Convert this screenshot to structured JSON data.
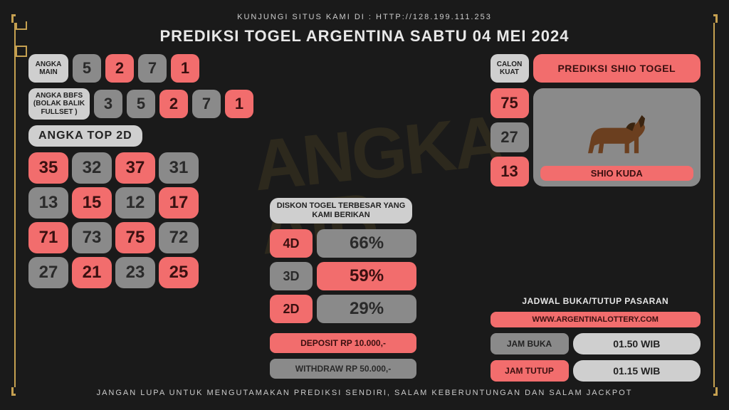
{
  "top_text": "KUNJUNGI SITUS KAMI DI : HTTP://128.199.111.253",
  "bottom_text": "JANGAN LUPA UNTUK MENGUTAMAKAN PREDIKSI SENDIRI, SALAM KEBERUNTUNGAN DAN SALAM JACKPOT",
  "title": "PREDIKSI TOGEL ARGENTINA SABTU 04 MEI 2024",
  "labels": {
    "angka_main": "ANGKA MAIN",
    "angka_bbfs": "ANGKA BBFS (BOLAK BALIK FULLSET )",
    "top2d": "ANGKA TOP 2D",
    "diskon": "DISKON TOGEL TERBESAR YANG KAMI BERIKAN",
    "calon_kuat": "CALON KUAT",
    "shio_title": "PREDIKSI SHIO TOGEL",
    "shio_name": "SHIO KUDA",
    "jadwal": "JADWAL BUKA/TUTUP PASARAN",
    "link": "WWW.ARGENTINALOTTERY.COM",
    "jam_buka": "JAM BUKA",
    "jam_tutup": "JAM TUTUP",
    "deposit": "DEPOSIT RP 10.000,-",
    "withdraw": "WITHDRAW RP 50.000,-"
  },
  "angka_main": [
    {
      "v": "5",
      "c": "gray"
    },
    {
      "v": "2",
      "c": "red"
    },
    {
      "v": "7",
      "c": "gray"
    },
    {
      "v": "1",
      "c": "red"
    }
  ],
  "angka_bbfs": [
    {
      "v": "3",
      "c": "gray"
    },
    {
      "v": "5",
      "c": "gray"
    },
    {
      "v": "2",
      "c": "red"
    },
    {
      "v": "7",
      "c": "gray"
    },
    {
      "v": "1",
      "c": "red"
    }
  ],
  "top2d": [
    {
      "v": "35",
      "c": "red"
    },
    {
      "v": "32",
      "c": "gray"
    },
    {
      "v": "37",
      "c": "red"
    },
    {
      "v": "31",
      "c": "gray"
    },
    {
      "v": "13",
      "c": "gray"
    },
    {
      "v": "15",
      "c": "red"
    },
    {
      "v": "12",
      "c": "gray"
    },
    {
      "v": "17",
      "c": "red"
    },
    {
      "v": "71",
      "c": "red"
    },
    {
      "v": "73",
      "c": "gray"
    },
    {
      "v": "75",
      "c": "red"
    },
    {
      "v": "72",
      "c": "gray"
    },
    {
      "v": "27",
      "c": "gray"
    },
    {
      "v": "21",
      "c": "red"
    },
    {
      "v": "23",
      "c": "gray"
    },
    {
      "v": "25",
      "c": "red"
    }
  ],
  "diskon": [
    {
      "tag": "4D",
      "tag_c": "red",
      "val": "66%",
      "val_c": "gray"
    },
    {
      "tag": "3D",
      "tag_c": "gray",
      "val": "59%",
      "val_c": "red"
    },
    {
      "tag": "2D",
      "tag_c": "red",
      "val": "29%",
      "val_c": "gray"
    }
  ],
  "calon": [
    {
      "v": "75",
      "c": "red"
    },
    {
      "v": "27",
      "c": "gray"
    },
    {
      "v": "13",
      "c": "red"
    }
  ],
  "schedule": {
    "buka": "01.50 WIB",
    "tutup": "01.15 WIB"
  },
  "colors": {
    "gray": "#8a8a8a",
    "red": "#f26d6d",
    "light": "#cfcfcf",
    "gold": "#c5a050",
    "bg": "#1a1a1a"
  }
}
